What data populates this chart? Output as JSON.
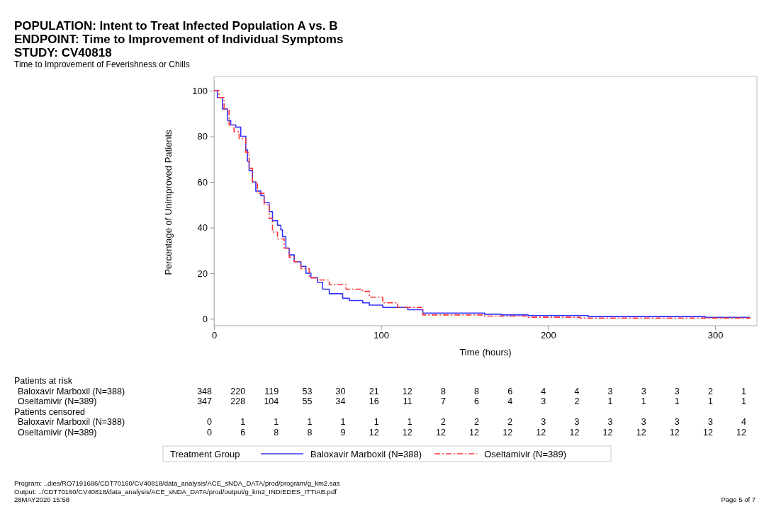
{
  "chart_data": {
    "type": "step",
    "title": "POPULATION: Intent to Treat Infected Population A vs. B\nENDPOINT: Time to Improvement of Individual Symptoms\nSTUDY: CV40818",
    "subtitle": "Time to Improvement of Feverishness or Chills",
    "xlabel": "Time (hours)",
    "ylabel": "Percentage of Unimproved Patients",
    "legend_title": "Treatment Group",
    "legend": "bottom",
    "marker": "none",
    "grid": false,
    "xlim": [
      0,
      325
    ],
    "xticks": [
      0,
      100,
      200,
      300
    ],
    "ylim": [
      -3,
      105
    ],
    "yticks": [
      0,
      20,
      40,
      60,
      80,
      100
    ],
    "series": [
      {
        "name": "Baloxavir Marboxil (N=388)",
        "color": "#3333ff",
        "line_style": "solid",
        "x": [
          0,
          2,
          5,
          8,
          10,
          13,
          16,
          19,
          20,
          21,
          23,
          25,
          28,
          30,
          33,
          35,
          38,
          40,
          41,
          43,
          45,
          48,
          52,
          55,
          58,
          62,
          65,
          69,
          73,
          77,
          81,
          89,
          93,
          101,
          116,
          125,
          162,
          172,
          188,
          224,
          294,
          321
        ],
        "values": [
          100,
          97,
          92,
          87,
          85,
          84,
          80,
          74,
          69,
          65,
          60,
          56,
          54,
          51,
          47,
          43,
          41,
          39,
          36,
          31,
          28,
          25,
          23,
          20,
          18,
          16,
          13,
          11,
          11,
          9,
          8,
          7,
          6,
          5,
          4,
          2.5,
          2,
          1.7,
          1.4,
          1,
          0.6,
          0.6
        ]
      },
      {
        "name": "Oseltamivir (N=389)",
        "color": "#ff3333",
        "line_style": "dashed",
        "x": [
          0,
          3,
          6,
          9,
          12,
          15,
          19,
          21,
          23,
          26,
          30,
          33,
          35,
          38,
          42,
          45,
          48,
          52,
          57,
          62,
          69,
          79,
          89,
          93,
          101,
          110,
          125,
          162,
          188,
          219,
          321
        ],
        "values": [
          100,
          97,
          92,
          85,
          82,
          79,
          73,
          66,
          60,
          55,
          50,
          44,
          38,
          35,
          31,
          27,
          25,
          22,
          18,
          17,
          15,
          13,
          12,
          9.5,
          7,
          5,
          1.7,
          1.2,
          0.7,
          0.3,
          0.3
        ]
      }
    ],
    "annotations": [
      "Patients at risk",
      "Baloxavir Marboxil (N=388)\t348\t220\t119\t53\t30\t21\t12\t8\t8\t6\t4\t4\t3\t3\t3\t2\t1",
      "Oseltamivir (N=389)\t347\t228\t104\t55\t34\t16\t11\t7\t6\t4\t3\t2\t1\t1\t1\t1\t1",
      "Patients censored",
      "Baloxavir Marboxil (N=388)\t0\t1\t1\t1\t1\t1\t1\t2\t2\t2\t3\t3\t3\t3\t3\t3\t4",
      "Oseltamivir (N=389)\t0\t6\t8\t8\t9\t12\t12\t12\t12\t12\t12\t12\t12\t12\t12\t12\t12",
      "Program: ..dies/RO7191686/CDT70160/CV40818/data_analysis/ACE_sNDA_DATA/prod/program/g_km2.sas",
      "Output: ../CDT70160/CV40818/data_analysis/ACE_sNDA_DATA/prod/output/g_km2_INDIEDES_ITTIAB.pdf",
      "28MAY2020 15:58",
      "Page 5 of 7"
    ]
  }
}
